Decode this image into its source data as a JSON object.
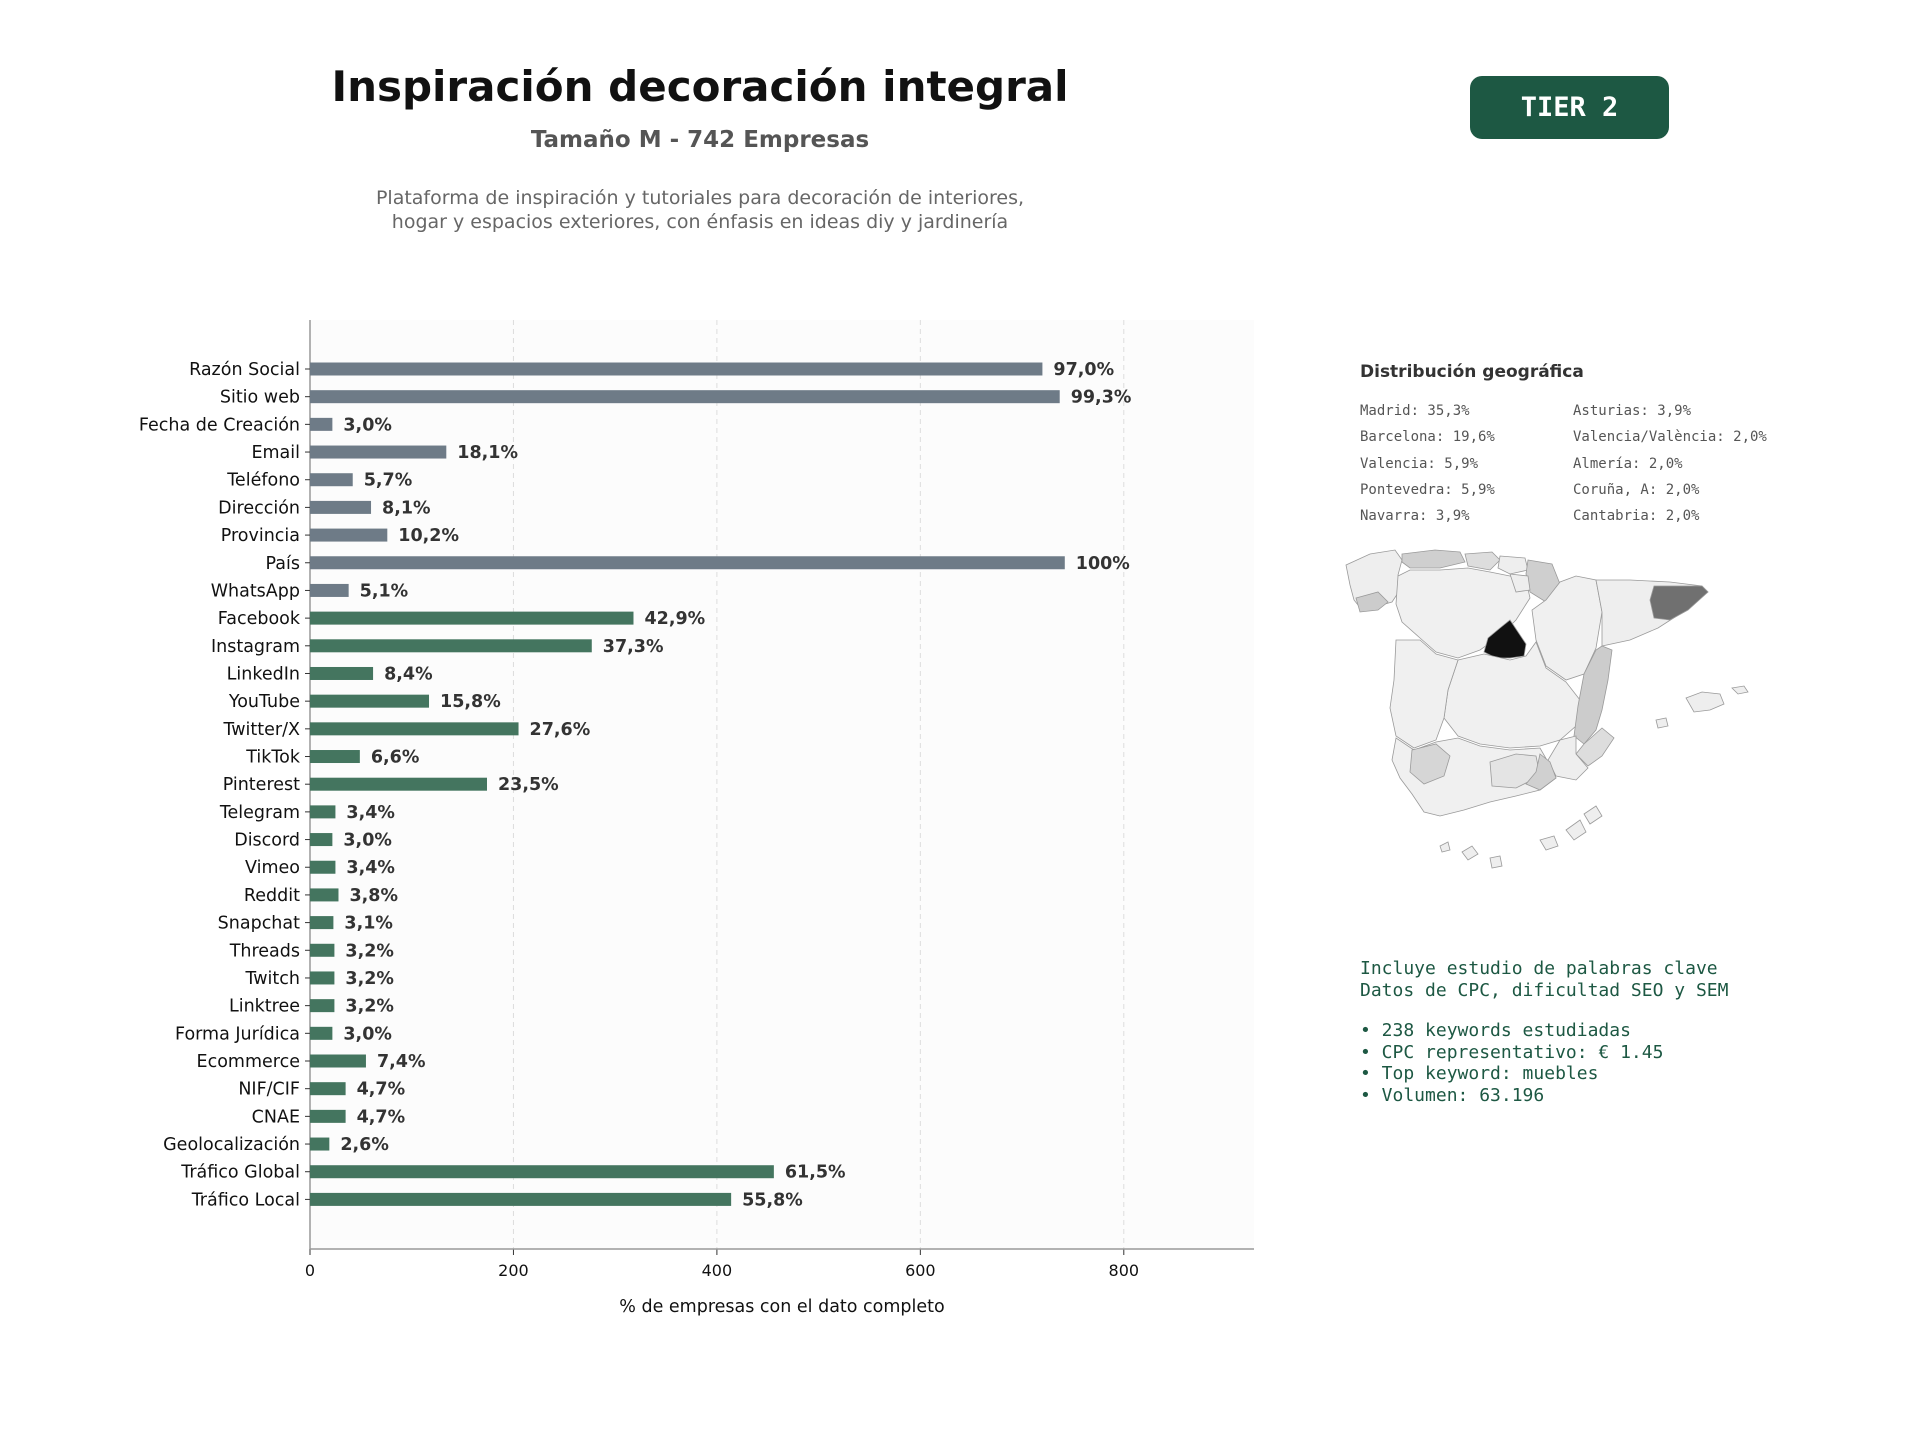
{
  "header": {
    "title": "Inspiración decoración integral",
    "subtitle": "Tamaño M - 742 Empresas",
    "description_lines": [
      "Plataforma de inspiración y tutoriales para decoración de interiores,",
      "hogar y espacios exteriores, con énfasis en ideas diy y jardinería"
    ],
    "tier": "TIER 2"
  },
  "colors": {
    "contact_bar": "#6e7b87",
    "digital_bar": "#44755f",
    "badge": "#1d5843",
    "seo_text": "#1d5843"
  },
  "chart_data": {
    "type": "bar",
    "orientation": "horizontal",
    "categories": [
      "Razón Social",
      "Sitio web",
      "Fecha de Creación",
      "Email",
      "Teléfono",
      "Dirección",
      "Provincia",
      "País",
      "WhatsApp",
      "Facebook",
      "Instagram",
      "LinkedIn",
      "YouTube",
      "Twitter/X",
      "TikTok",
      "Pinterest",
      "Telegram",
      "Discord",
      "Vimeo",
      "Reddit",
      "Snapchat",
      "Threads",
      "Twitch",
      "Linktree",
      "Forma Jurídica",
      "Ecommerce",
      "NIF/CIF",
      "CNAE",
      "Geolocalización",
      "Tráfico Global",
      "Tráfico Local"
    ],
    "values": [
      720,
      737,
      22,
      134,
      42,
      60,
      76,
      742,
      38,
      318,
      277,
      62,
      117,
      205,
      49,
      174,
      25,
      22,
      25,
      28,
      23,
      24,
      24,
      24,
      22,
      55,
      35,
      35,
      19,
      456,
      414
    ],
    "labels": [
      "97,0%",
      "99,3%",
      "3,0%",
      "18,1%",
      "5,7%",
      "8,1%",
      "10,2%",
      "100%",
      "5,1%",
      "42,9%",
      "37,3%",
      "8,4%",
      "15,8%",
      "27,6%",
      "6,6%",
      "23,5%",
      "3,4%",
      "3,0%",
      "3,4%",
      "3,8%",
      "3,1%",
      "3,2%",
      "3,2%",
      "3,2%",
      "3,0%",
      "7,4%",
      "4,7%",
      "4,7%",
      "2,6%",
      "61,5%",
      "55,8%"
    ],
    "groups": [
      "contact",
      "contact",
      "contact",
      "contact",
      "contact",
      "contact",
      "contact",
      "contact",
      "contact",
      "digital",
      "digital",
      "digital",
      "digital",
      "digital",
      "digital",
      "digital",
      "digital",
      "digital",
      "digital",
      "digital",
      "digital",
      "digital",
      "digital",
      "digital",
      "digital",
      "digital",
      "digital",
      "digital",
      "digital",
      "digital",
      "digital"
    ],
    "xlabel": "% de empresas con el dato completo",
    "xticks": [
      0,
      200,
      400,
      600,
      800
    ],
    "xlim": [
      0,
      928
    ],
    "grid": "vertical dashed"
  },
  "geo": {
    "title": "Distribución geográfica",
    "column_left": [
      "Madrid: 35,3%",
      "Barcelona: 19,6%",
      "Valencia: 5,9%",
      "Pontevedra: 5,9%",
      "Navarra: 3,9%"
    ],
    "column_right": [
      "Asturias: 3,9%",
      "Valencia/València: 2,0%",
      "Almería: 2,0%",
      "Coruña, A: 2,0%",
      "Cantabria: 2,0%"
    ]
  },
  "seo": {
    "intro_lines": [
      "Incluye estudio de palabras clave",
      "Datos de CPC, dificultad SEO y SEM"
    ],
    "bullets": [
      "• 238 keywords estudiadas",
      "• CPC representativo: € 1.45",
      "• Top keyword: muebles",
      "• Volumen: 63.196"
    ]
  }
}
